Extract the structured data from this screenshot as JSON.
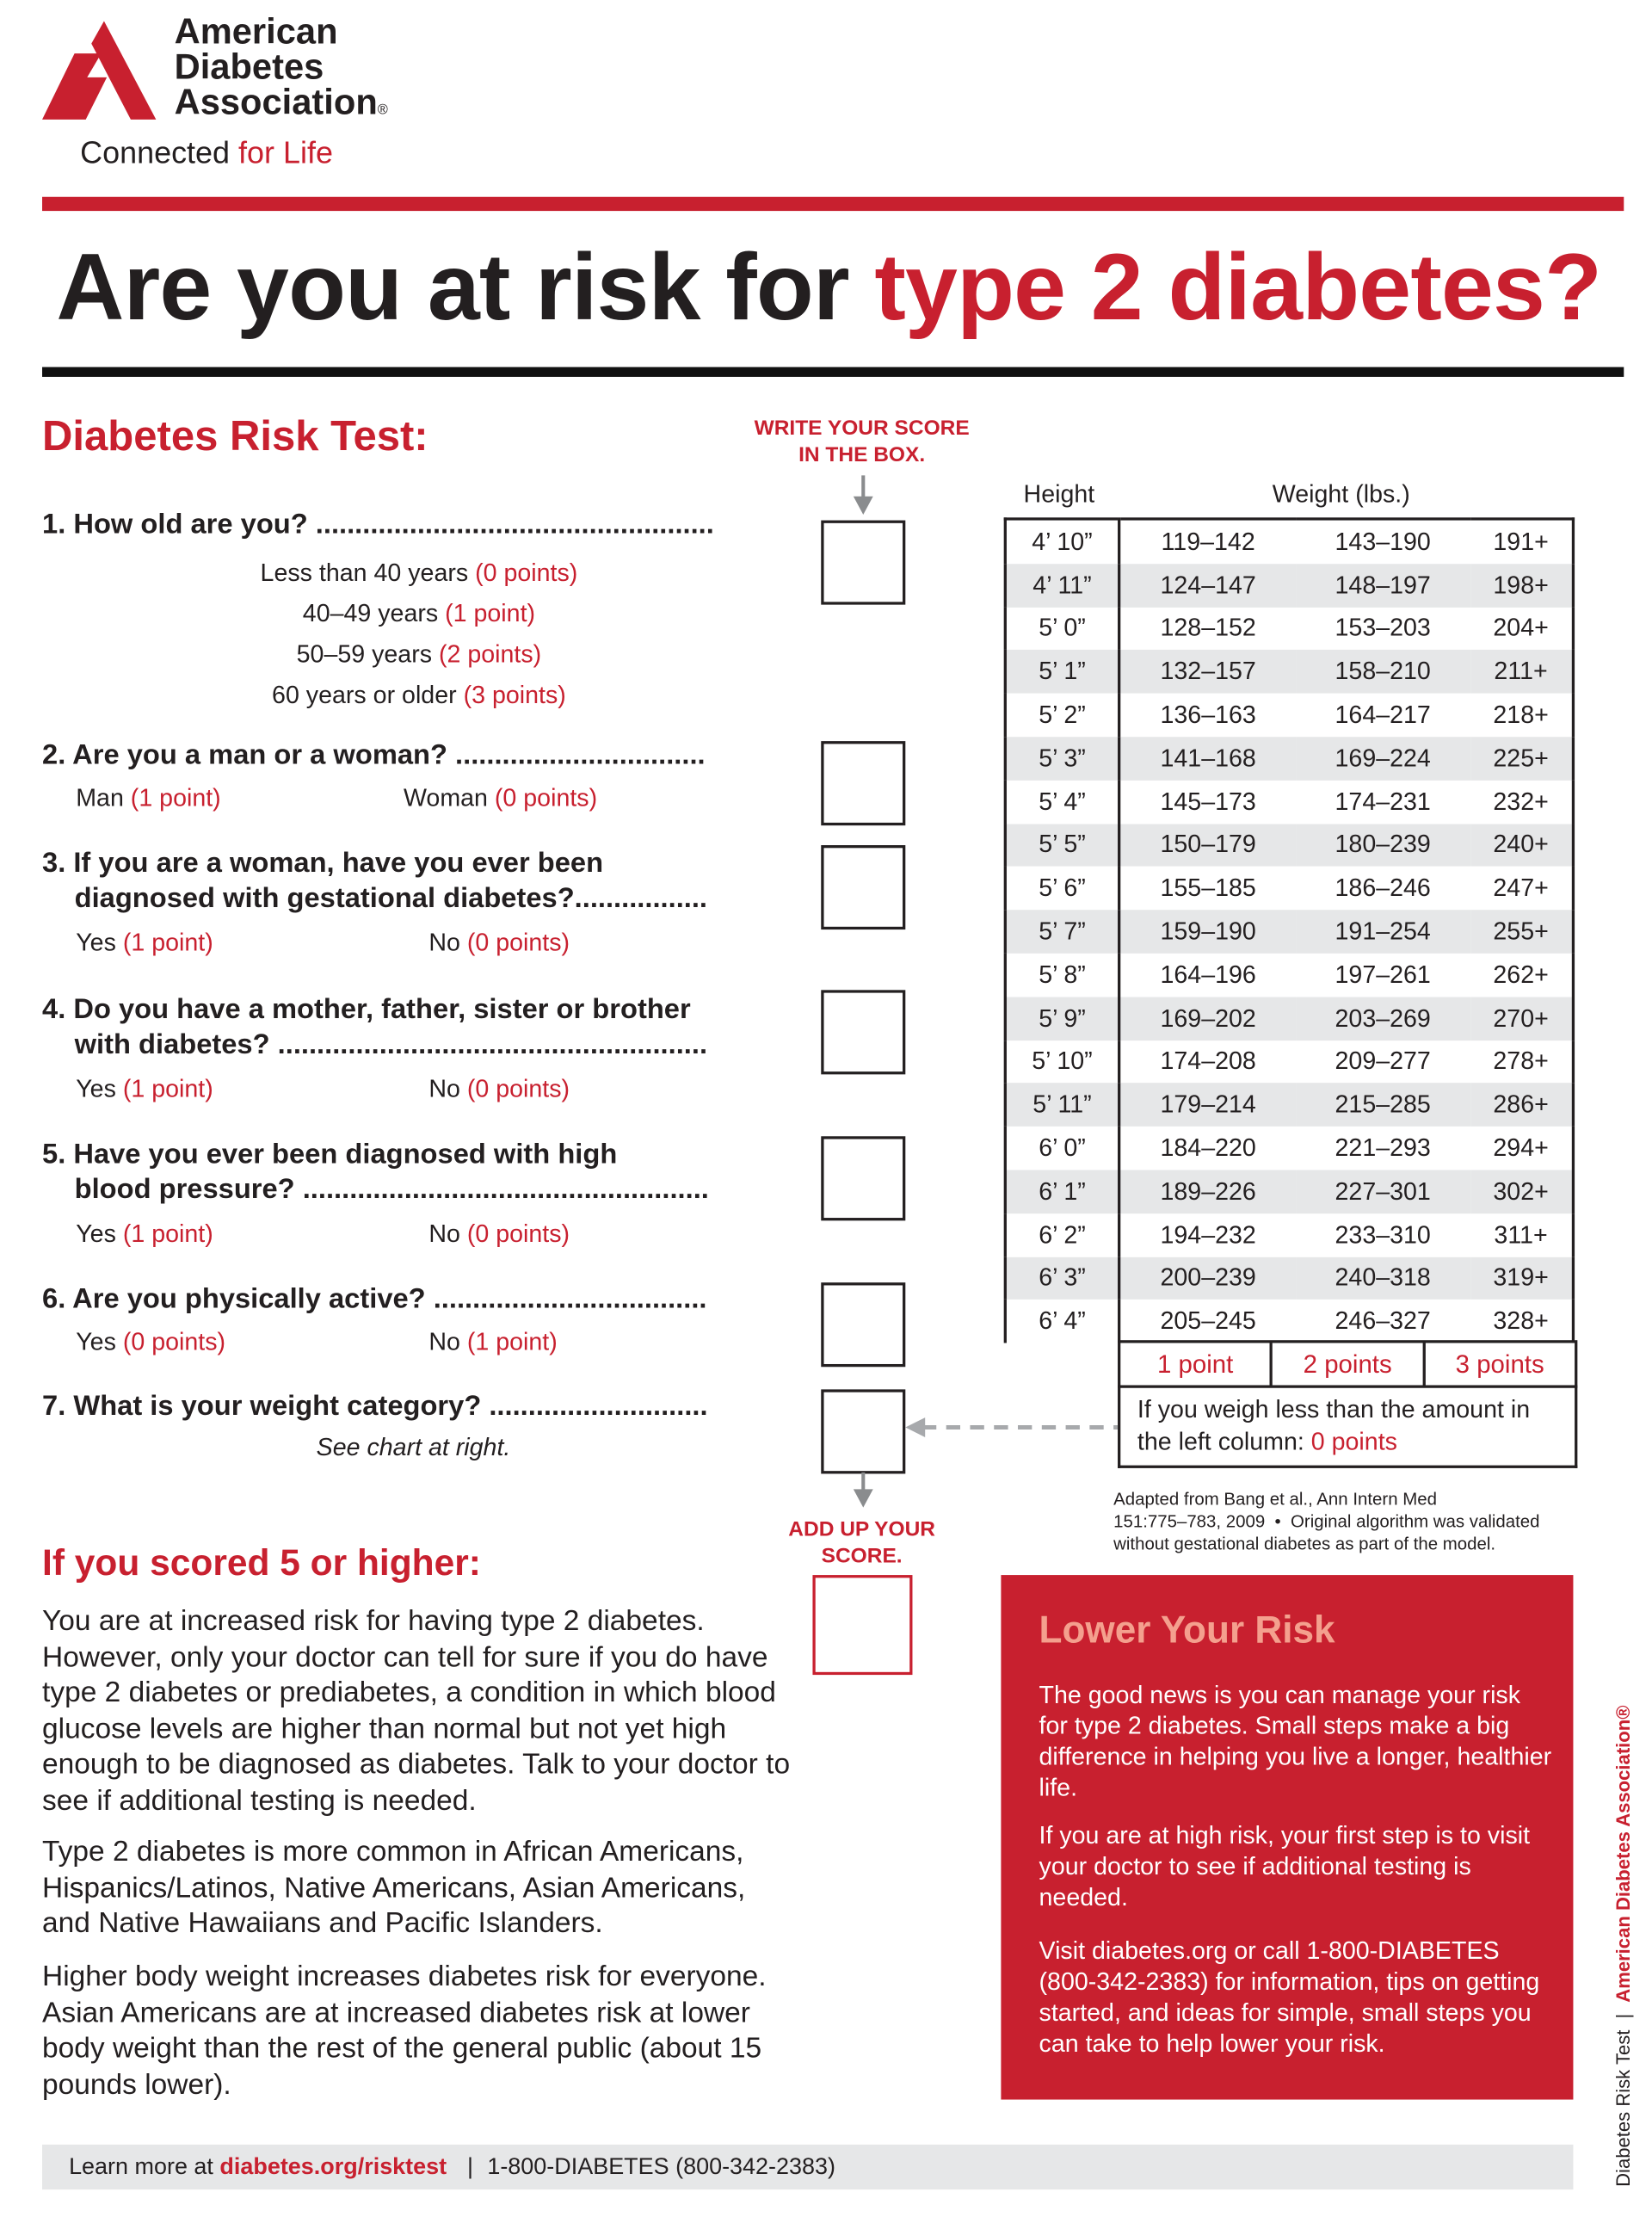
{
  "logo": {
    "name_lines": [
      "American",
      "Diabetes",
      "Association"
    ],
    "tagline_main": "Connected",
    "tagline_accent": "for Life"
  },
  "title": {
    "main": "Are you at risk for ",
    "accent": "type 2 diabetes?"
  },
  "test": {
    "heading": "Diabetes Risk Test:",
    "instruction": "WRITE YOUR SCORE IN THE BOX.",
    "add_up": "ADD UP YOUR SCORE.",
    "questions": [
      {
        "text": "1. How old are you? ...................................................",
        "options": [
          {
            "label": "Less than 40 years ",
            "points": "(0 points)"
          },
          {
            "label": "40–49 years ",
            "points": "(1 point)"
          },
          {
            "label": "50–59 years ",
            "points": "(2 points)"
          },
          {
            "label": "60 years or older ",
            "points": "(3 points)"
          }
        ]
      },
      {
        "text": "2. Are you a man or a woman? ................................",
        "options": [
          {
            "label": "Man ",
            "points": "(1 point)"
          },
          {
            "label": "Woman ",
            "points": "(0 points)"
          }
        ]
      },
      {
        "text": "3. If you are a woman, have you ever been",
        "text2": "diagnosed with gestational diabetes?.................",
        "options": [
          {
            "label": "Yes ",
            "points": "(1 point)"
          },
          {
            "label": "No ",
            "points": "(0 points)"
          }
        ]
      },
      {
        "text": "4. Do you have a mother, father, sister or brother",
        "text2": "with diabetes? .......................................................",
        "options": [
          {
            "label": "Yes ",
            "points": "(1 point)"
          },
          {
            "label": "No ",
            "points": "(0 points)"
          }
        ]
      },
      {
        "text": "5. Have you ever been diagnosed with high",
        "text2": "blood pressure? ....................................................",
        "options": [
          {
            "label": "Yes ",
            "points": "(1 point)"
          },
          {
            "label": "No ",
            "points": "(0 points)"
          }
        ]
      },
      {
        "text": "6. Are you physically active? ...................................",
        "options": [
          {
            "label": "Yes ",
            "points": "(0 points)"
          },
          {
            "label": "No ",
            "points": "(1 point)"
          }
        ]
      },
      {
        "text": "7. What is your weight category? ............................",
        "note": "See chart at right."
      }
    ]
  },
  "weight_table": {
    "height_header": "Height",
    "weight_header": "Weight (lbs.)",
    "rows": [
      [
        "4’ 10”",
        "119–142",
        "143–190",
        "191+"
      ],
      [
        "4’ 11”",
        "124–147",
        "148–197",
        "198+"
      ],
      [
        "5’ 0”",
        "128–152",
        "153–203",
        "204+"
      ],
      [
        "5’ 1”",
        "132–157",
        "158–210",
        "211+"
      ],
      [
        "5’ 2”",
        "136–163",
        "164–217",
        "218+"
      ],
      [
        "5’ 3”",
        "141–168",
        "169–224",
        "225+"
      ],
      [
        "5’ 4”",
        "145–173",
        "174–231",
        "232+"
      ],
      [
        "5’ 5”",
        "150–179",
        "180–239",
        "240+"
      ],
      [
        "5’ 6”",
        "155–185",
        "186–246",
        "247+"
      ],
      [
        "5’ 7”",
        "159–190",
        "191–254",
        "255+"
      ],
      [
        "5’ 8”",
        "164–196",
        "197–261",
        "262+"
      ],
      [
        "5’ 9”",
        "169–202",
        "203–269",
        "270+"
      ],
      [
        "5’ 10”",
        "174–208",
        "209–277",
        "278+"
      ],
      [
        "5’ 11”",
        "179–214",
        "215–285",
        "286+"
      ],
      [
        "6’ 0”",
        "184–220",
        "221–293",
        "294+"
      ],
      [
        "6’ 1”",
        "189–226",
        "227–301",
        "302+"
      ],
      [
        "6’ 2”",
        "194–232",
        "233–310",
        "311+"
      ],
      [
        "6’ 3”",
        "200–239",
        "240–318",
        "319+"
      ],
      [
        "6’ 4”",
        "205–245",
        "246–327",
        "328+"
      ]
    ],
    "points": [
      "1 point",
      "2 points",
      "3 points"
    ],
    "less_note": "If you weigh less than the amount in the left column: ",
    "less_points": "0 points",
    "citation": [
      "Adapted from Bang et al., Ann Intern Med",
      "151:775–783, 2009  •  Original algorithm was validated",
      "without gestational diabetes as part of the model."
    ]
  },
  "high_score": {
    "heading": "If you scored 5 or higher:",
    "paragraphs": [
      "You are at increased risk for having type 2 diabetes. However, only your doctor can tell for sure if you do have type 2 diabetes or prediabetes, a condition in which blood glucose levels are higher than normal but not yet high enough to be diagnosed as diabetes. Talk to your doctor to see if additional testing is needed.",
      "Type 2 diabetes is more common in African Americans, Hispanics/Latinos, Native Americans, Asian Americans, and Native Hawaiians and Pacific Islanders.",
      "Higher body weight increases diabetes risk for everyone. Asian Americans are at increased diabetes risk at lower body weight than the rest of the general public (about 15 pounds lower)."
    ]
  },
  "lower_risk": {
    "heading": "Lower Your Risk",
    "paragraphs": [
      "The good news is you can manage your risk for type 2 diabetes. Small steps make a big difference in helping you live a longer, healthier life.",
      "If you are at high risk, your first step is to visit your doctor to see if additional testing is needed.",
      "Visit diabetes.org or call 1-800-DIABETES (800-342-2383) for information, tips on getting started, and ideas for simple, small steps you can take to help lower your risk."
    ]
  },
  "footer": {
    "prefix": "Learn more at ",
    "link": "diabetes.org/risktest",
    "sep": "|",
    "phone": "1-800-DIABETES (800-342-2383)"
  },
  "side": {
    "left": "Diabetes Risk Test",
    "sep": "|",
    "right": "American Diabetes Association®"
  },
  "colors": {
    "brand_red": "#c8202f",
    "salmon": "#f4a08e",
    "gray_bar": "#e6e7e8"
  }
}
